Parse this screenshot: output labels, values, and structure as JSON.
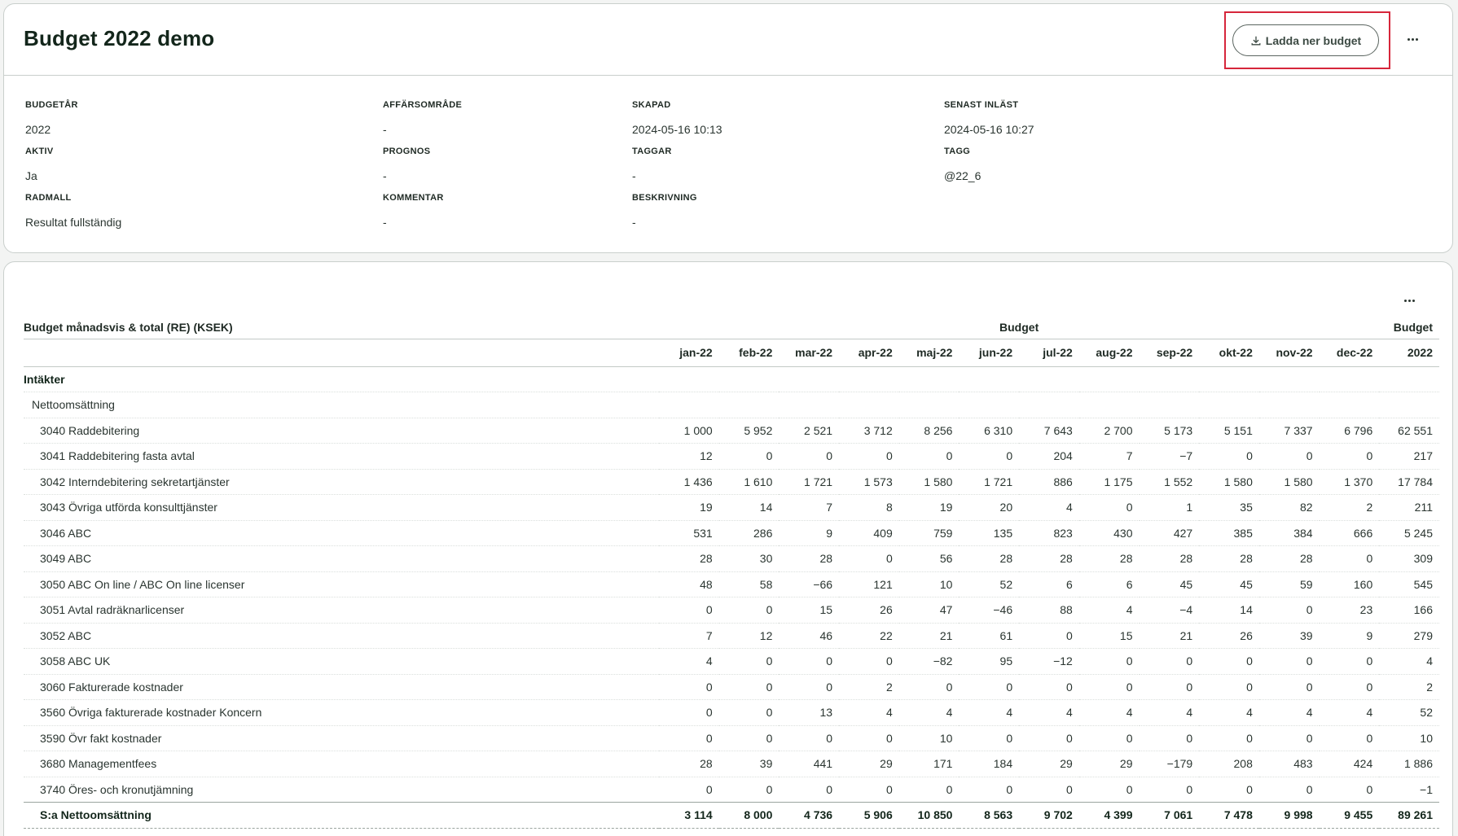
{
  "page_title": "Budget 2022 demo",
  "download_button_label": "Ladda ner budget",
  "meta": [
    {
      "label": "BUDGETÅR",
      "value": "2022"
    },
    {
      "label": "AFFÄRSOMRÅDE",
      "value": "-"
    },
    {
      "label": "SKAPAD",
      "value": "2024-05-16 10:13"
    },
    {
      "label": "SENAST INLÄST",
      "value": "2024-05-16 10:27"
    },
    {
      "label": "AKTIV",
      "value": "Ja"
    },
    {
      "label": "PROGNOS",
      "value": "-"
    },
    {
      "label": "TAGGAR",
      "value": "-"
    },
    {
      "label": "TAGG",
      "value": "@22_6"
    },
    {
      "label": "RADMALL",
      "value": "Resultat fullständig"
    },
    {
      "label": "KOMMENTAR",
      "value": "-"
    },
    {
      "label": "BESKRIVNING",
      "value": "-"
    }
  ],
  "table": {
    "title": "Budget månadsvis & total (RE) (KSEK)",
    "group_header": "Budget",
    "total_group_header": "Budget",
    "columns": [
      "jan-22",
      "feb-22",
      "mar-22",
      "apr-22",
      "maj-22",
      "jun-22",
      "jul-22",
      "aug-22",
      "sep-22",
      "okt-22",
      "nov-22",
      "dec-22",
      "2022"
    ],
    "section": "Intäkter",
    "group": "Nettoomsättning",
    "rows": [
      {
        "label": "3040 Raddebitering",
        "values": [
          "1 000",
          "5 952",
          "2 521",
          "3 712",
          "8 256",
          "6 310",
          "7 643",
          "2 700",
          "5 173",
          "5 151",
          "7 337",
          "6 796",
          "62 551"
        ]
      },
      {
        "label": "3041 Raddebitering fasta avtal",
        "values": [
          "12",
          "0",
          "0",
          "0",
          "0",
          "0",
          "204",
          "7",
          "−7",
          "0",
          "0",
          "0",
          "217"
        ]
      },
      {
        "label": "3042 Interndebitering sekretartjänster",
        "values": [
          "1 436",
          "1 610",
          "1 721",
          "1 573",
          "1 580",
          "1 721",
          "886",
          "1 175",
          "1 552",
          "1 580",
          "1 580",
          "1 370",
          "17 784"
        ]
      },
      {
        "label": "3043 Övriga utförda konsulttjänster",
        "values": [
          "19",
          "14",
          "7",
          "8",
          "19",
          "20",
          "4",
          "0",
          "1",
          "35",
          "82",
          "2",
          "211"
        ]
      },
      {
        "label": "3046 ABC",
        "values": [
          "531",
          "286",
          "9",
          "409",
          "759",
          "135",
          "823",
          "430",
          "427",
          "385",
          "384",
          "666",
          "5 245"
        ]
      },
      {
        "label": "3049 ABC",
        "values": [
          "28",
          "30",
          "28",
          "0",
          "56",
          "28",
          "28",
          "28",
          "28",
          "28",
          "28",
          "0",
          "309"
        ]
      },
      {
        "label": "3050 ABC On line / ABC On line licenser",
        "values": [
          "48",
          "58",
          "−66",
          "121",
          "10",
          "52",
          "6",
          "6",
          "45",
          "45",
          "59",
          "160",
          "545"
        ]
      },
      {
        "label": "3051 Avtal radräknarlicenser",
        "values": [
          "0",
          "0",
          "15",
          "26",
          "47",
          "−46",
          "88",
          "4",
          "−4",
          "14",
          "0",
          "23",
          "166"
        ]
      },
      {
        "label": "3052 ABC",
        "values": [
          "7",
          "12",
          "46",
          "22",
          "21",
          "61",
          "0",
          "15",
          "21",
          "26",
          "39",
          "9",
          "279"
        ]
      },
      {
        "label": "3058 ABC UK",
        "values": [
          "4",
          "0",
          "0",
          "0",
          "−82",
          "95",
          "−12",
          "0",
          "0",
          "0",
          "0",
          "0",
          "4"
        ]
      },
      {
        "label": "3060 Fakturerade kostnader",
        "values": [
          "0",
          "0",
          "0",
          "2",
          "0",
          "0",
          "0",
          "0",
          "0",
          "0",
          "0",
          "0",
          "2"
        ]
      },
      {
        "label": "3560 Övriga fakturerade kostnader Koncern",
        "values": [
          "0",
          "0",
          "13",
          "4",
          "4",
          "4",
          "4",
          "4",
          "4",
          "4",
          "4",
          "4",
          "52"
        ]
      },
      {
        "label": "3590 Övr fakt kostnader",
        "values": [
          "0",
          "0",
          "0",
          "0",
          "10",
          "0",
          "0",
          "0",
          "0",
          "0",
          "0",
          "0",
          "10"
        ]
      },
      {
        "label": "3680 Managementfees",
        "values": [
          "28",
          "39",
          "441",
          "29",
          "171",
          "184",
          "29",
          "29",
          "−179",
          "208",
          "483",
          "424",
          "1 886"
        ]
      },
      {
        "label": "3740 Öres- och kronutjämning",
        "values": [
          "0",
          "0",
          "0",
          "0",
          "0",
          "0",
          "0",
          "0",
          "0",
          "0",
          "0",
          "0",
          "−1"
        ]
      }
    ],
    "sum_row": {
      "label": "S:a Nettoomsättning",
      "values": [
        "3 114",
        "8 000",
        "4 736",
        "5 906",
        "10 850",
        "8 563",
        "9 702",
        "4 399",
        "7 061",
        "7 478",
        "9 998",
        "9 455",
        "89 261"
      ]
    }
  }
}
